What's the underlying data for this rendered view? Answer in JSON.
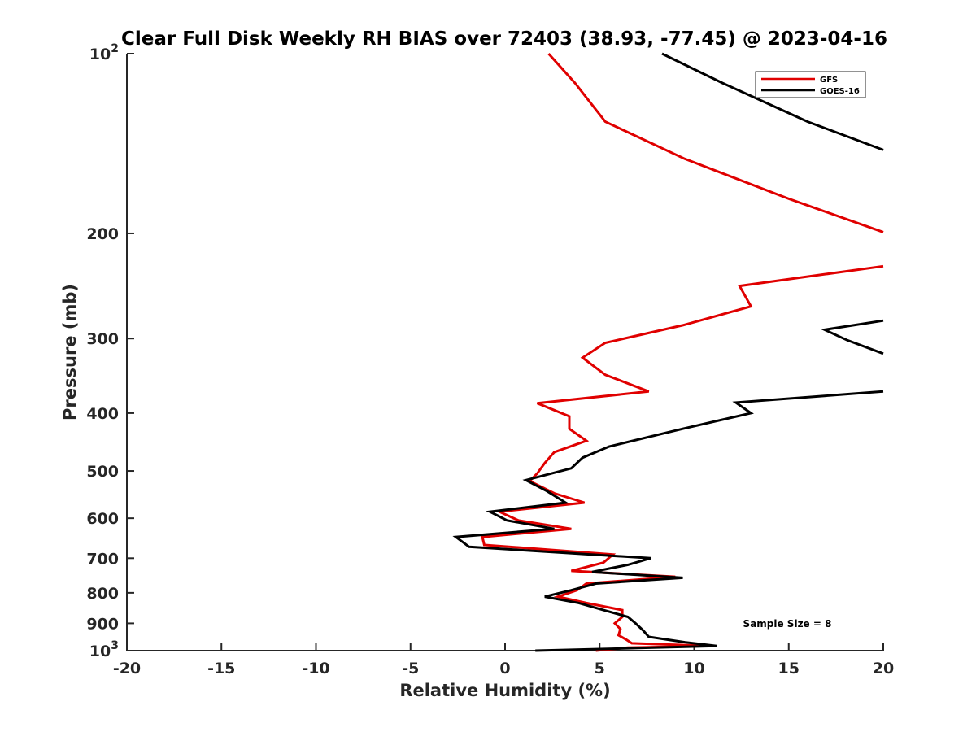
{
  "chart_data": {
    "type": "line",
    "title": "Clear Full Disk Weekly RH BIAS over 72403 (38.93, -77.45) @ 2023-04-16",
    "xlabel": "Relative Humidity (%)",
    "ylabel": "Pressure (mb)",
    "xlim": [
      -20,
      20
    ],
    "ylim": [
      100,
      1000
    ],
    "y_scale": "log",
    "y_reversed": true,
    "grid": false,
    "legend_position": "top-right",
    "x_ticks": [
      "-20",
      "-15",
      "-10",
      "-5",
      "0",
      "5",
      "10",
      "15",
      "20"
    ],
    "y_ticks": [
      {
        "value": 100,
        "base": "10",
        "exp": "2"
      },
      {
        "value": 200,
        "base": "200",
        "exp": ""
      },
      {
        "value": 300,
        "base": "300",
        "exp": ""
      },
      {
        "value": 400,
        "base": "400",
        "exp": ""
      },
      {
        "value": 500,
        "base": "500",
        "exp": ""
      },
      {
        "value": 600,
        "base": "600",
        "exp": ""
      },
      {
        "value": 700,
        "base": "700",
        "exp": ""
      },
      {
        "value": 800,
        "base": "800",
        "exp": ""
      },
      {
        "value": 900,
        "base": "900",
        "exp": ""
      },
      {
        "value": 1000,
        "base": "10",
        "exp": "3"
      }
    ],
    "annotation": "Sample Size = 8",
    "series": [
      {
        "name": "GFS",
        "color": "#e00000",
        "points": [
          [
            2.3,
            100
          ],
          [
            3.7,
            112
          ],
          [
            5.3,
            130
          ],
          [
            9.5,
            150
          ],
          [
            15,
            175
          ],
          [
            20,
            199
          ],
          [
            null,
            null
          ],
          [
            20,
            227
          ],
          [
            12.4,
            245
          ],
          [
            13,
            265
          ],
          [
            9.4,
            285
          ],
          [
            5.3,
            305
          ],
          [
            4.1,
            323
          ],
          [
            5.3,
            345
          ],
          [
            7.6,
            368
          ],
          [
            1.7,
            385
          ],
          [
            3.4,
            405
          ],
          [
            3.4,
            425
          ],
          [
            4.3,
            445
          ],
          [
            2.6,
            465
          ],
          [
            2.1,
            485
          ],
          [
            1.7,
            505
          ],
          [
            1.3,
            520
          ],
          [
            2.6,
            545
          ],
          [
            4.2,
            565
          ],
          [
            -0.3,
            585
          ],
          [
            0.7,
            605
          ],
          [
            3.5,
            625
          ],
          [
            -1.2,
            645
          ],
          [
            -1.1,
            665
          ],
          [
            5.7,
            690
          ],
          [
            5.2,
            712
          ],
          [
            3.5,
            735
          ],
          [
            9.0,
            752
          ],
          [
            4.3,
            772
          ],
          [
            3.8,
            792
          ],
          [
            2.8,
            812
          ],
          [
            4.3,
            832
          ],
          [
            6.2,
            855
          ],
          [
            6.2,
            878
          ],
          [
            5.8,
            900
          ],
          [
            6.1,
            920
          ],
          [
            6.0,
            942
          ],
          [
            6.4,
            958
          ],
          [
            6.7,
            972
          ],
          [
            10.8,
            982
          ],
          [
            6.5,
            988
          ],
          [
            4.8,
            1000
          ]
        ]
      },
      {
        "name": "GOES-16",
        "color": "#000000",
        "points": [
          [
            8.3,
            100
          ],
          [
            11.5,
            112
          ],
          [
            16,
            130
          ],
          [
            20,
            145
          ],
          [
            null,
            null
          ],
          [
            20,
            280
          ],
          [
            16.9,
            290
          ],
          [
            18.1,
            302
          ],
          [
            20,
            318
          ],
          [
            null,
            null
          ],
          [
            20,
            368
          ],
          [
            12.2,
            384
          ],
          [
            13.0,
            400
          ],
          [
            9.4,
            425
          ],
          [
            5.5,
            455
          ],
          [
            4.1,
            475
          ],
          [
            3.5,
            495
          ],
          [
            1.1,
            518
          ],
          [
            2.2,
            540
          ],
          [
            3.2,
            565
          ],
          [
            -0.8,
            585
          ],
          [
            0.1,
            605
          ],
          [
            2.6,
            625
          ],
          [
            -2.6,
            645
          ],
          [
            -1.9,
            670
          ],
          [
            7.7,
            700
          ],
          [
            6.5,
            718
          ],
          [
            4.6,
            738
          ],
          [
            9.4,
            755
          ],
          [
            4.8,
            772
          ],
          [
            3.5,
            792
          ],
          [
            2.1,
            812
          ],
          [
            3.9,
            832
          ],
          [
            5.2,
            855
          ],
          [
            6.5,
            878
          ],
          [
            6.9,
            900
          ],
          [
            7.3,
            925
          ],
          [
            7.6,
            948
          ],
          [
            9.5,
            968
          ],
          [
            11.2,
            982
          ],
          [
            7.0,
            990
          ],
          [
            1.6,
            1000
          ]
        ]
      }
    ]
  }
}
